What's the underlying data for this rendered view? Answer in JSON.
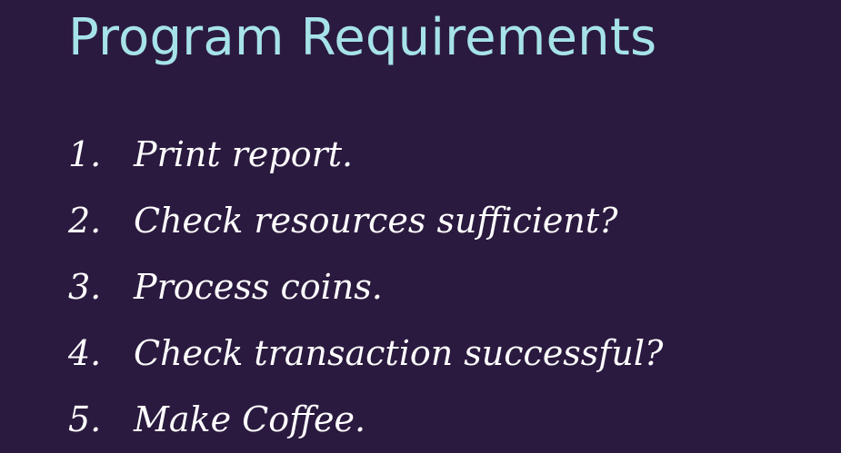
{
  "slide": {
    "title": "Program Requirements",
    "requirements": [
      {
        "number": "1.",
        "text": "Print report."
      },
      {
        "number": "2.",
        "text": "Check resources sufficient?"
      },
      {
        "number": "3.",
        "text": "Process coins."
      },
      {
        "number": "4.",
        "text": "Check transaction successful?"
      },
      {
        "number": "5.",
        "text": "Make Coffee."
      }
    ]
  },
  "colors": {
    "background": "#2b1a3f",
    "title": "#a6e3e9",
    "text": "#ffffff"
  }
}
